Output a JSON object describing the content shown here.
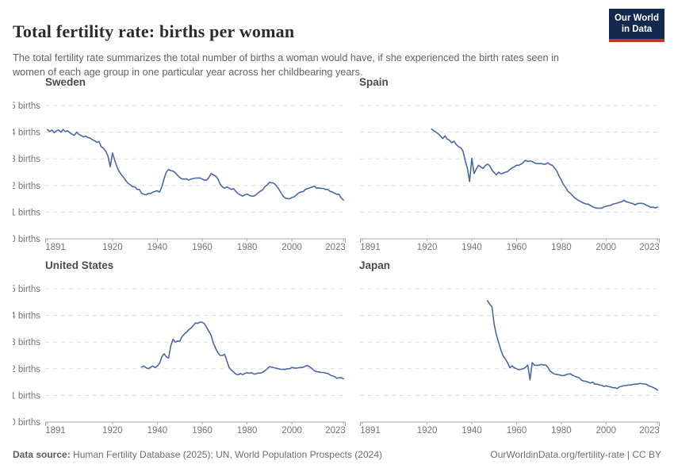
{
  "header": {
    "title": "Total fertility rate: births per woman",
    "subtitle": "The total fertility rate summarizes the total number of births a woman would have, if she experienced the birth rates seen in women of each age group in one particular year across her childbearing years.",
    "logo": {
      "line1": "Our World",
      "line2": "in Data",
      "bg_color": "#12294d",
      "accent_color": "#c23425"
    }
  },
  "footer": {
    "source_label": "Data source:",
    "source_text": " Human Fertility Database (2025); UN, World Population Prospects (2024)",
    "link_text": "OurWorldinData.org/fertility-rate | CC BY"
  },
  "chart_data": {
    "type": "line",
    "layout": "2x2 small multiples, shared axes",
    "unit": "births per woman",
    "x_range": [
      1890,
      2024
    ],
    "y_range": [
      0,
      5
    ],
    "x_ticks": [
      1891,
      1920,
      1940,
      1960,
      1980,
      2000,
      2023
    ],
    "y_tick_labels": [
      "0 births",
      "1 births",
      "2 births",
      "3 births",
      "4 births",
      "5 births"
    ],
    "line_color": "#4a68a1",
    "grid_color": "#dcdcdc",
    "axis_color": "#a8a8a8",
    "grid": "dashed horizontal gridlines at each birth count",
    "panels": [
      {
        "title": "Sweden",
        "start_year": 1891,
        "end_year": 2023,
        "values": [
          4.1,
          4.02,
          4.08,
          3.98,
          4.05,
          4.08,
          4.0,
          4.1,
          4.02,
          4.05,
          3.98,
          3.92,
          3.88,
          4.0,
          3.92,
          3.88,
          3.82,
          3.85,
          3.8,
          3.78,
          3.72,
          3.68,
          3.62,
          3.65,
          3.45,
          3.4,
          3.28,
          3.1,
          2.7,
          3.22,
          2.95,
          2.7,
          2.52,
          2.4,
          2.3,
          2.18,
          2.08,
          2.02,
          1.95,
          1.95,
          1.85,
          1.85,
          1.7,
          1.67,
          1.65,
          1.7,
          1.7,
          1.75,
          1.78,
          1.8,
          1.75,
          1.95,
          2.25,
          2.5,
          2.6,
          2.56,
          2.54,
          2.48,
          2.38,
          2.3,
          2.25,
          2.24,
          2.25,
          2.2,
          2.24,
          2.26,
          2.28,
          2.28,
          2.28,
          2.24,
          2.2,
          2.2,
          2.3,
          2.45,
          2.4,
          2.35,
          2.25,
          2.05,
          1.95,
          1.9,
          1.95,
          1.9,
          1.85,
          1.88,
          1.78,
          1.7,
          1.65,
          1.6,
          1.65,
          1.68,
          1.63,
          1.6,
          1.6,
          1.65,
          1.73,
          1.79,
          1.84,
          1.96,
          2.02,
          2.12,
          2.1,
          2.08,
          2.0,
          1.89,
          1.74,
          1.61,
          1.53,
          1.51,
          1.5,
          1.55,
          1.57,
          1.65,
          1.72,
          1.76,
          1.77,
          1.85,
          1.88,
          1.91,
          1.94,
          1.98,
          1.9,
          1.91,
          1.89,
          1.89,
          1.85,
          1.85,
          1.78,
          1.76,
          1.71,
          1.67,
          1.67,
          1.53,
          1.45
        ]
      },
      {
        "title": "Spain",
        "start_year": 1922,
        "end_year": 2023,
        "values": [
          4.12,
          4.05,
          4.0,
          3.94,
          3.85,
          3.76,
          3.86,
          3.74,
          3.7,
          3.6,
          3.66,
          3.54,
          3.46,
          3.42,
          3.3,
          2.95,
          2.65,
          2.15,
          3.02,
          2.45,
          2.62,
          2.76,
          2.7,
          2.64,
          2.74,
          2.8,
          2.74,
          2.58,
          2.48,
          2.4,
          2.5,
          2.44,
          2.46,
          2.5,
          2.52,
          2.6,
          2.66,
          2.7,
          2.76,
          2.76,
          2.8,
          2.86,
          2.95,
          2.9,
          2.92,
          2.9,
          2.85,
          2.82,
          2.82,
          2.82,
          2.8,
          2.8,
          2.85,
          2.78,
          2.76,
          2.65,
          2.54,
          2.35,
          2.2,
          2.03,
          1.92,
          1.78,
          1.71,
          1.62,
          1.54,
          1.48,
          1.43,
          1.38,
          1.34,
          1.31,
          1.3,
          1.25,
          1.2,
          1.17,
          1.15,
          1.15,
          1.15,
          1.19,
          1.22,
          1.24,
          1.25,
          1.3,
          1.32,
          1.34,
          1.37,
          1.39,
          1.45,
          1.39,
          1.37,
          1.34,
          1.32,
          1.27,
          1.32,
          1.33,
          1.33,
          1.31,
          1.26,
          1.23,
          1.18,
          1.19,
          1.16,
          1.19
        ]
      },
      {
        "title": "United States",
        "start_year": 1933,
        "end_year": 2023,
        "values": [
          2.06,
          2.1,
          2.04,
          2.0,
          2.06,
          2.1,
          2.04,
          2.1,
          2.2,
          2.45,
          2.56,
          2.45,
          2.4,
          2.86,
          3.1,
          3.0,
          3.04,
          3.03,
          3.2,
          3.3,
          3.37,
          3.46,
          3.52,
          3.62,
          3.72,
          3.7,
          3.75,
          3.74,
          3.69,
          3.55,
          3.4,
          3.25,
          2.96,
          2.76,
          2.6,
          2.5,
          2.5,
          2.54,
          2.3,
          2.05,
          1.95,
          1.88,
          1.8,
          1.77,
          1.82,
          1.78,
          1.82,
          1.85,
          1.83,
          1.85,
          1.8,
          1.81,
          1.84,
          1.84,
          1.87,
          1.93,
          2.0,
          2.08,
          2.06,
          2.04,
          2.02,
          2.0,
          1.98,
          1.98,
          1.97,
          2.0,
          2.0,
          2.05,
          2.03,
          2.02,
          2.04,
          2.05,
          2.05,
          2.1,
          2.12,
          2.07,
          2.0,
          1.93,
          1.89,
          1.88,
          1.86,
          1.86,
          1.84,
          1.82,
          1.77,
          1.73,
          1.71,
          1.64,
          1.66,
          1.67,
          1.62
        ]
      },
      {
        "title": "Japan",
        "start_year": 1947,
        "end_year": 2023,
        "values": [
          4.55,
          4.42,
          4.32,
          3.65,
          3.26,
          2.98,
          2.7,
          2.48,
          2.37,
          2.22,
          2.04,
          2.11,
          2.04,
          2.0,
          1.96,
          1.98,
          2.0,
          2.05,
          2.14,
          1.58,
          2.23,
          2.13,
          2.13,
          2.13,
          2.16,
          2.14,
          2.14,
          2.05,
          1.91,
          1.85,
          1.8,
          1.79,
          1.77,
          1.75,
          1.74,
          1.77,
          1.8,
          1.81,
          1.76,
          1.72,
          1.69,
          1.66,
          1.57,
          1.54,
          1.53,
          1.5,
          1.46,
          1.5,
          1.42,
          1.43,
          1.39,
          1.38,
          1.34,
          1.36,
          1.33,
          1.32,
          1.29,
          1.29,
          1.26,
          1.32,
          1.34,
          1.37,
          1.37,
          1.39,
          1.39,
          1.41,
          1.43,
          1.42,
          1.45,
          1.44,
          1.43,
          1.42,
          1.36,
          1.33,
          1.3,
          1.26,
          1.2
        ]
      }
    ]
  }
}
